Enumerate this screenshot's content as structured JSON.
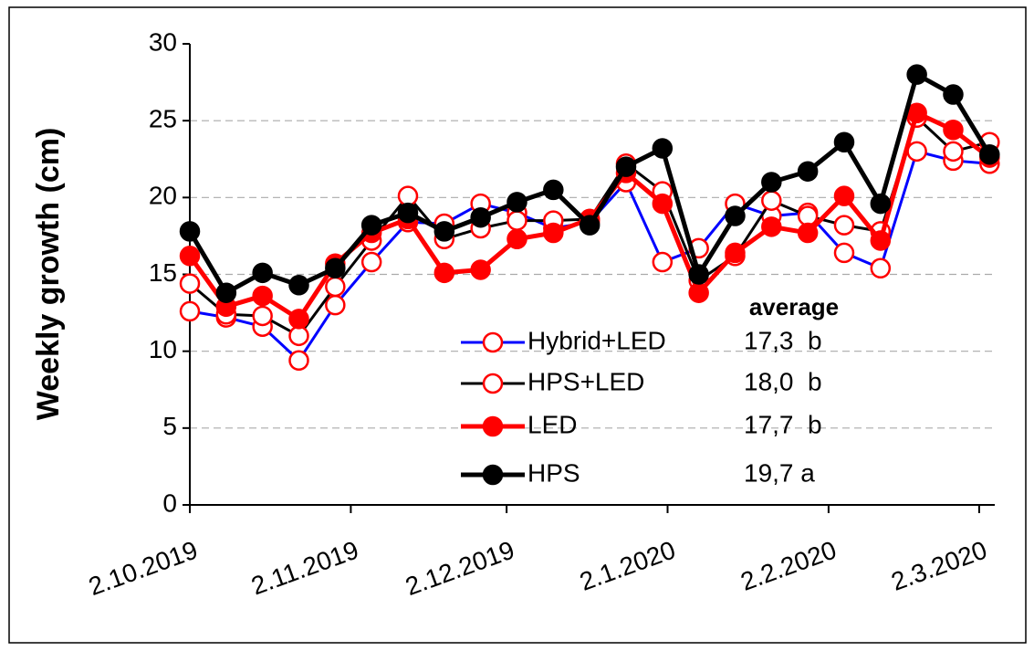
{
  "chart_data": {
    "type": "line",
    "ylabel": "Weekly growth (cm)",
    "x": [
      "2.10.2019",
      "9.10.2019",
      "16.10.2019",
      "23.10.2019",
      "30.10.2019",
      "6.11.2019",
      "13.11.2019",
      "20.11.2019",
      "27.11.2019",
      "4.12.2019",
      "11.12.2019",
      "18.12.2019",
      "25.12.2019",
      "1.1.2020",
      "8.1.2020",
      "15.1.2020",
      "22.1.2020",
      "29.1.2020",
      "5.2.2020",
      "12.2.2020",
      "19.2.2020",
      "26.2.2020",
      "4.3.2020"
    ],
    "xlim": [
      "2.10.2019",
      "5.3.2020"
    ],
    "xticks": [
      "2.10.2019",
      "2.11.2019",
      "2.12.2019",
      "2.1.2020",
      "2.2.2020",
      "2.3.2020"
    ],
    "ylim": [
      0,
      30
    ],
    "yticks": [
      0,
      5,
      10,
      15,
      20,
      25,
      30
    ],
    "grid": true,
    "legend_header": "average",
    "series": [
      {
        "name": "Hybrid+LED",
        "note": "17,3  b",
        "color": "#0000ff",
        "line_width": 3,
        "marker_fill": "#ffffff",
        "marker_edge": "#ff0000",
        "values": [
          12.6,
          12.2,
          11.6,
          9.4,
          13.0,
          15.8,
          18.4,
          18.3,
          19.6,
          19.0,
          18.0,
          18.4,
          21.0,
          15.8,
          16.7,
          19.6,
          18.8,
          19.0,
          16.4,
          15.4,
          23.0,
          22.4,
          22.2
        ]
      },
      {
        "name": "HPS+LED",
        "note": "18,0  b",
        "color": "#000000",
        "line_width": 3,
        "marker_fill": "#ffffff",
        "marker_edge": "#ff0000",
        "values": [
          14.4,
          12.4,
          12.3,
          11.0,
          14.2,
          17.2,
          20.1,
          17.3,
          18.0,
          18.5,
          18.5,
          18.6,
          22.2,
          20.4,
          14.6,
          16.2,
          19.8,
          18.8,
          18.2,
          17.8,
          25.2,
          23.0,
          23.6
        ]
      },
      {
        "name": "LED",
        "note": "17,7  b",
        "color": "#ff0000",
        "line_width": 5,
        "marker_fill": "#ff0000",
        "marker_edge": "#ff0000",
        "values": [
          16.2,
          12.9,
          13.6,
          12.1,
          15.7,
          17.7,
          18.6,
          15.1,
          15.3,
          17.3,
          17.7,
          18.6,
          21.6,
          19.6,
          13.8,
          16.4,
          18.1,
          17.7,
          20.1,
          17.2,
          25.5,
          24.4,
          22.6
        ]
      },
      {
        "name": "HPS",
        "note": "19,7 a",
        "color": "#000000",
        "line_width": 5,
        "marker_fill": "#000000",
        "marker_edge": "#000000",
        "values": [
          17.8,
          13.8,
          15.1,
          14.3,
          15.4,
          18.2,
          19.0,
          17.8,
          18.7,
          19.7,
          20.5,
          18.2,
          22.0,
          23.2,
          15.0,
          18.8,
          21.0,
          21.7,
          23.6,
          19.6,
          28.0,
          26.7,
          22.8
        ]
      }
    ]
  }
}
